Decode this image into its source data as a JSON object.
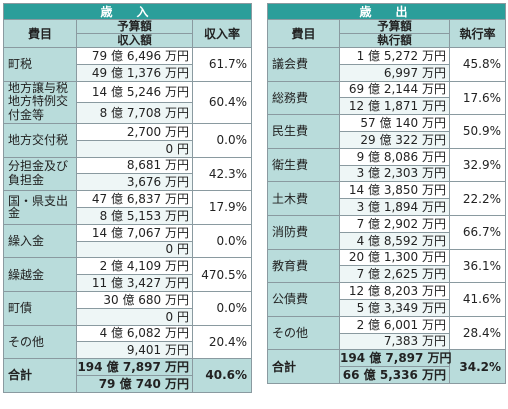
{
  "revenue": {
    "title": "歳　入",
    "header": {
      "item": "費目",
      "budget": "予算額",
      "actual": "収入額",
      "rate": "収入率"
    },
    "rows": [
      {
        "name": "町税",
        "budget": "79 億 6,496 万円",
        "actual": "49 億 1,376 万円",
        "rate": "61.7%"
      },
      {
        "name": "地方譲与税\n地方特例交\n付金等",
        "budget": "14 億 5,246 万円",
        "actual": "8 億 7,708 万円",
        "rate": "60.4%"
      },
      {
        "name": "地方交付税",
        "budget": "2,700 万円",
        "actual": "0 円",
        "rate": "0.0%"
      },
      {
        "name": "分担金及び\n負担金",
        "budget": "8,681 万円",
        "actual": "3,676 万円",
        "rate": "42.3%"
      },
      {
        "name": "国・県支出金",
        "budget": "47 億 6,837 万円",
        "actual": "8 億 5,153 万円",
        "rate": "17.9%"
      },
      {
        "name": "繰入金",
        "budget": "14 億 7,067 万円",
        "actual": "0 円",
        "rate": "0.0%"
      },
      {
        "name": "繰越金",
        "budget": "2 億 4,109 万円",
        "actual": "11 億 3,427 万円",
        "rate": "470.5%"
      },
      {
        "name": "町債",
        "budget": "30 億 680 万円",
        "actual": "0 円",
        "rate": "0.0%"
      },
      {
        "name": "その他",
        "budget": "4 億 6,082 万円",
        "actual": "9,401 万円",
        "rate": "20.4%"
      }
    ],
    "total": {
      "name": "合計",
      "budget": "194 億 7,897 万円",
      "actual": "79 億 740 万円",
      "rate": "40.6%"
    }
  },
  "expenditure": {
    "title": "歳　出",
    "header": {
      "item": "費目",
      "budget": "予算額",
      "actual": "執行額",
      "rate": "執行率"
    },
    "rows": [
      {
        "name": "議会費",
        "budget": "1 億 5,272 万円",
        "actual": "6,997 万円",
        "rate": "45.8%"
      },
      {
        "name": "総務費",
        "budget": "69 億 2,144 万円",
        "actual": "12 億 1,871 万円",
        "rate": "17.6%"
      },
      {
        "name": "民生費",
        "budget": "57 億 140 万円",
        "actual": "29 億 322 万円",
        "rate": "50.9%"
      },
      {
        "name": "衛生費",
        "budget": "9 億 8,086 万円",
        "actual": "3 億 2,303 万円",
        "rate": "32.9%"
      },
      {
        "name": "土木費",
        "budget": "14 億 3,850 万円",
        "actual": "3 億 1,894 万円",
        "rate": "22.2%"
      },
      {
        "name": "消防費",
        "budget": "7 億 2,902 万円",
        "actual": "4 億 8,592 万円",
        "rate": "66.7%"
      },
      {
        "name": "教育費",
        "budget": "20 億 1,300 万円",
        "actual": "7 億 2,625 万円",
        "rate": "36.1%"
      },
      {
        "name": "公債費",
        "budget": "12 億 8,203 万円",
        "actual": "5 億 3,349 万円",
        "rate": "41.6%"
      },
      {
        "name": "その他",
        "budget": "2 億 6,001 万円",
        "actual": "7,383 万円",
        "rate": "28.4%"
      }
    ],
    "total": {
      "name": "合計",
      "budget": "194 億 7,897 万円",
      "actual": "66 億 5,336 万円",
      "rate": "34.2%"
    }
  }
}
